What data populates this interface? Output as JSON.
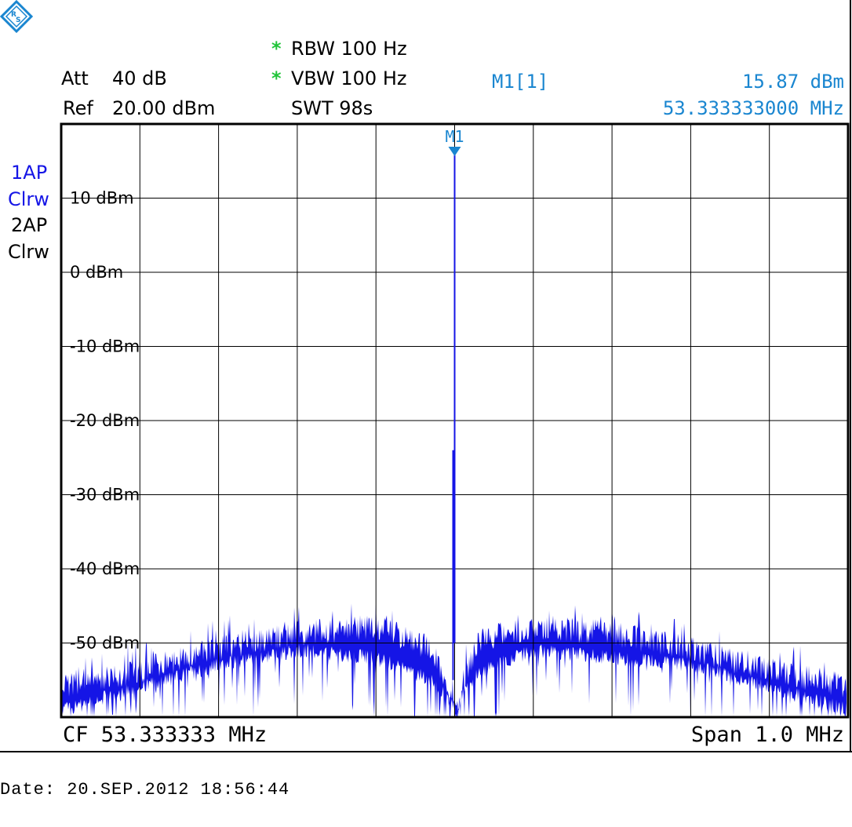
{
  "header": {
    "att_label": "Att",
    "att_value": "40 dB",
    "ref_label": "Ref",
    "ref_value": "20.00 dBm",
    "rbw": "RBW 100 Hz",
    "vbw": "VBW 100 Hz",
    "swt": "SWT 98s",
    "star": "*",
    "marker_name": "M1[1]",
    "marker_level": "15.87 dBm",
    "marker_freq": "53.333333000 MHz"
  },
  "traces": {
    "t1_label": "1AP",
    "t1_mode": "Clrw",
    "t2_label": "2AP",
    "t2_mode": "Clrw"
  },
  "footer": {
    "cf": "CF 53.333333 MHz",
    "span": "Span 1.0 MHz",
    "date": "Date: 20.SEP.2012  18:56:44"
  },
  "colors": {
    "trace1": "#1515e6",
    "marker": "#1a86d0",
    "star": "#22c43a",
    "grid": "#000000"
  },
  "icons": {
    "logo": "rohde-schwarz-logo-icon"
  },
  "chart_data": {
    "type": "line",
    "title": "",
    "xlabel": "",
    "ylabel": "",
    "xlim_MHz": [
      52.833333,
      53.833333
    ],
    "ylim_dBm": [
      -60,
      20
    ],
    "grid": true,
    "y_ticks": [
      {
        "value": 10,
        "label": "10 dBm"
      },
      {
        "value": 0,
        "label": "0 dBm"
      },
      {
        "value": -10,
        "label": "-10 dBm"
      },
      {
        "value": -20,
        "label": "-20 dBm"
      },
      {
        "value": -30,
        "label": "-30 dBm"
      },
      {
        "value": -40,
        "label": "-40 dBm"
      },
      {
        "value": -50,
        "label": "-50 dBm"
      }
    ],
    "marker": {
      "label": "M1",
      "x_MHz": 53.333333,
      "y_dBm": 15.87
    },
    "noise_envelope": {
      "x_MHz": [
        52.8333,
        52.9333,
        53.0333,
        53.1333,
        53.2333,
        53.3033,
        53.3233,
        53.3333,
        53.3433,
        53.3633,
        53.4333,
        53.5333,
        53.6333,
        53.7333,
        53.8333
      ],
      "upper_dBm": [
        -54,
        -52,
        -49,
        -47,
        -46,
        -49,
        -54,
        -58,
        -54,
        -48,
        -46,
        -47,
        -49,
        -52,
        -54
      ],
      "lower_dBm": [
        -60,
        -57,
        -54,
        -52,
        -53,
        -56,
        -58,
        -60,
        -58,
        -55,
        -52,
        -53,
        -54,
        -57,
        -60
      ]
    }
  }
}
